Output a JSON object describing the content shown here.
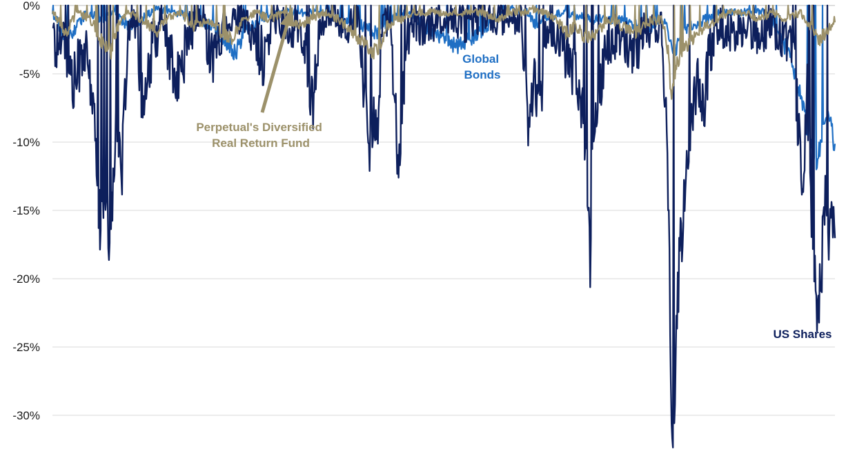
{
  "chart_data": {
    "type": "line",
    "title": "",
    "xlabel": "",
    "ylabel": "",
    "ylim": [
      -34,
      0
    ],
    "y_ticks": [
      {
        "value": 0,
        "label": "0%"
      },
      {
        "value": -5,
        "label": "-5%"
      },
      {
        "value": -10,
        "label": "-10%"
      },
      {
        "value": -15,
        "label": "-15%"
      },
      {
        "value": -20,
        "label": "-20%"
      },
      {
        "value": -25,
        "label": "-25%"
      },
      {
        "value": -30,
        "label": "-30%"
      }
    ],
    "grid": true,
    "legend": "none",
    "x_count": 1136,
    "series": [
      {
        "name": "US Shares",
        "color": "#0d1f5c",
        "keypoints": [
          [
            0,
            -1
          ],
          [
            5,
            -3.5
          ],
          [
            14,
            -1.5
          ],
          [
            30,
            -6
          ],
          [
            45,
            -3
          ],
          [
            58,
            -6.5
          ],
          [
            70,
            -17
          ],
          [
            78,
            -13
          ],
          [
            84,
            -18.5
          ],
          [
            92,
            -8
          ],
          [
            100,
            -13.5
          ],
          [
            108,
            -3
          ],
          [
            120,
            -1.5
          ],
          [
            133,
            -8
          ],
          [
            145,
            -3
          ],
          [
            160,
            -1
          ],
          [
            180,
            -6
          ],
          [
            198,
            -2
          ],
          [
            215,
            -1
          ],
          [
            235,
            -4
          ],
          [
            250,
            -1
          ],
          [
            272,
            -1
          ],
          [
            290,
            -2
          ],
          [
            308,
            -4
          ],
          [
            320,
            -1
          ],
          [
            340,
            -1.5
          ],
          [
            360,
            -2
          ],
          [
            378,
            -7
          ],
          [
            390,
            -1
          ],
          [
            410,
            -1
          ],
          [
            430,
            -1.5
          ],
          [
            445,
            -1
          ],
          [
            460,
            -11.5
          ],
          [
            466,
            -7
          ],
          [
            472,
            -9
          ],
          [
            478,
            -2
          ],
          [
            490,
            -1
          ],
          [
            502,
            -12.5
          ],
          [
            510,
            -5
          ],
          [
            520,
            -1
          ],
          [
            540,
            -2
          ],
          [
            560,
            -1
          ],
          [
            580,
            -1
          ],
          [
            600,
            -1.5
          ],
          [
            620,
            -1
          ],
          [
            640,
            -1
          ],
          [
            660,
            -1
          ],
          [
            680,
            -1
          ],
          [
            692,
            -10
          ],
          [
            698,
            -4
          ],
          [
            706,
            -8
          ],
          [
            714,
            -3
          ],
          [
            725,
            -1.5
          ],
          [
            740,
            -3
          ],
          [
            760,
            -5
          ],
          [
            770,
            -8
          ],
          [
            776,
            -14
          ],
          [
            780,
            -19
          ],
          [
            784,
            -10
          ],
          [
            792,
            -6
          ],
          [
            805,
            -3
          ],
          [
            820,
            -2
          ],
          [
            840,
            -4
          ],
          [
            855,
            -2
          ],
          [
            870,
            -1.5
          ],
          [
            885,
            -2
          ],
          [
            893,
            -13
          ],
          [
            897,
            -27
          ],
          [
            900,
            -34
          ],
          [
            904,
            -25
          ],
          [
            910,
            -18
          ],
          [
            918,
            -14
          ],
          [
            926,
            -9
          ],
          [
            935,
            -5
          ],
          [
            945,
            -7
          ],
          [
            955,
            -3
          ],
          [
            965,
            -1.5
          ],
          [
            985,
            -2.5
          ],
          [
            1005,
            -1.5
          ],
          [
            1025,
            -2
          ],
          [
            1045,
            -1.5
          ],
          [
            1062,
            -2.5
          ],
          [
            1075,
            -4
          ],
          [
            1088,
            -13
          ],
          [
            1095,
            -6
          ],
          [
            1100,
            -15
          ],
          [
            1104,
            -18
          ],
          [
            1110,
            -22.5
          ],
          [
            1115,
            -20
          ],
          [
            1120,
            -14
          ],
          [
            1126,
            -17
          ],
          [
            1130,
            -15
          ],
          [
            1135,
            -16.5
          ]
        ]
      },
      {
        "name": "Global Bonds",
        "color": "#1f6fc4",
        "keypoints": [
          [
            0,
            -0.5
          ],
          [
            10,
            -1.5
          ],
          [
            22,
            -2.5
          ],
          [
            35,
            -1.5
          ],
          [
            50,
            -0.5
          ],
          [
            70,
            -1
          ],
          [
            90,
            -0.5
          ],
          [
            110,
            -1.5
          ],
          [
            130,
            -1
          ],
          [
            150,
            -0.3
          ],
          [
            180,
            -0.5
          ],
          [
            210,
            -1
          ],
          [
            230,
            -1.5
          ],
          [
            250,
            -2.5
          ],
          [
            265,
            -3.5
          ],
          [
            280,
            -2
          ],
          [
            300,
            -1
          ],
          [
            330,
            -0.5
          ],
          [
            360,
            -0.5
          ],
          [
            390,
            -0.5
          ],
          [
            420,
            -1
          ],
          [
            450,
            -1.5
          ],
          [
            470,
            -2
          ],
          [
            490,
            -1
          ],
          [
            510,
            -0.5
          ],
          [
            530,
            -1
          ],
          [
            550,
            -2
          ],
          [
            570,
            -2.5
          ],
          [
            590,
            -3
          ],
          [
            605,
            -2.5
          ],
          [
            620,
            -2
          ],
          [
            640,
            -1
          ],
          [
            660,
            -0.3
          ],
          [
            690,
            -0.5
          ],
          [
            700,
            -1.5
          ],
          [
            710,
            -1
          ],
          [
            740,
            -0.5
          ],
          [
            760,
            -0.8
          ],
          [
            780,
            -1
          ],
          [
            800,
            -1
          ],
          [
            820,
            -1
          ],
          [
            850,
            -1.5
          ],
          [
            870,
            -1.5
          ],
          [
            890,
            -1
          ],
          [
            898,
            -3.5
          ],
          [
            905,
            -3
          ],
          [
            915,
            -2
          ],
          [
            925,
            -1.5
          ],
          [
            940,
            -1.2
          ],
          [
            970,
            -0.5
          ],
          [
            1000,
            -0.5
          ],
          [
            1030,
            -0.5
          ],
          [
            1050,
            -1.5
          ],
          [
            1062,
            -3
          ],
          [
            1075,
            -4.5
          ],
          [
            1085,
            -6.5
          ],
          [
            1095,
            -9
          ],
          [
            1103,
            -11
          ],
          [
            1108,
            -12
          ],
          [
            1114,
            -10
          ],
          [
            1120,
            -8
          ],
          [
            1125,
            -7.5
          ],
          [
            1130,
            -9
          ],
          [
            1135,
            -10.5
          ]
        ]
      },
      {
        "name": "Perpetual's Diversified Real Return Fund",
        "color": "#9c916a",
        "keypoints": [
          [
            0,
            -0.5
          ],
          [
            8,
            -1
          ],
          [
            20,
            -2
          ],
          [
            35,
            -0.5
          ],
          [
            55,
            -1
          ],
          [
            70,
            -2.5
          ],
          [
            85,
            -3.5
          ],
          [
            95,
            -1.5
          ],
          [
            110,
            -0.5
          ],
          [
            130,
            -1
          ],
          [
            150,
            -2
          ],
          [
            165,
            -1
          ],
          [
            185,
            -0.5
          ],
          [
            205,
            -1.5
          ],
          [
            225,
            -1
          ],
          [
            245,
            -2
          ],
          [
            262,
            -2.5
          ],
          [
            275,
            -1
          ],
          [
            295,
            -0.5
          ],
          [
            315,
            -1
          ],
          [
            335,
            -0.5
          ],
          [
            355,
            -1.5
          ],
          [
            375,
            -1
          ],
          [
            395,
            -0.5
          ],
          [
            415,
            -1
          ],
          [
            435,
            -2
          ],
          [
            455,
            -3
          ],
          [
            470,
            -3.5
          ],
          [
            485,
            -1.5
          ],
          [
            505,
            -1
          ],
          [
            525,
            -0.5
          ],
          [
            545,
            -0.5
          ],
          [
            565,
            -0.5
          ],
          [
            585,
            -0.5
          ],
          [
            605,
            -0.5
          ],
          [
            625,
            -0.5
          ],
          [
            645,
            -1
          ],
          [
            665,
            -0.5
          ],
          [
            685,
            -0.5
          ],
          [
            700,
            -0.3
          ],
          [
            715,
            -0.5
          ],
          [
            730,
            -1
          ],
          [
            745,
            -2
          ],
          [
            760,
            -1.5
          ],
          [
            775,
            -2.5
          ],
          [
            790,
            -2
          ],
          [
            805,
            -1
          ],
          [
            825,
            -1.5
          ],
          [
            845,
            -2
          ],
          [
            865,
            -1.2
          ],
          [
            885,
            -1
          ],
          [
            893,
            -3.5
          ],
          [
            898,
            -7
          ],
          [
            905,
            -4.5
          ],
          [
            915,
            -3
          ],
          [
            930,
            -2.5
          ],
          [
            945,
            -1.5
          ],
          [
            965,
            -1
          ],
          [
            985,
            -0.5
          ],
          [
            1005,
            -0.5
          ],
          [
            1025,
            -1
          ],
          [
            1045,
            -0.5
          ],
          [
            1065,
            -1
          ],
          [
            1085,
            -0.5
          ],
          [
            1100,
            -1.5
          ],
          [
            1112,
            -2.5
          ],
          [
            1122,
            -2
          ],
          [
            1130,
            -1.5
          ],
          [
            1135,
            -1
          ]
        ]
      }
    ],
    "annotations": [
      {
        "lines": [
          "Perpetual's Diversified",
          "Real Return Fund"
        ],
        "color": "#9c916a",
        "arrow": true
      },
      {
        "lines": [
          "Global",
          "Bonds"
        ],
        "color": "#1f6fc4",
        "arrow": false
      },
      {
        "lines": [
          "US Shares"
        ],
        "color": "#0d1f5c",
        "arrow": false
      }
    ]
  }
}
